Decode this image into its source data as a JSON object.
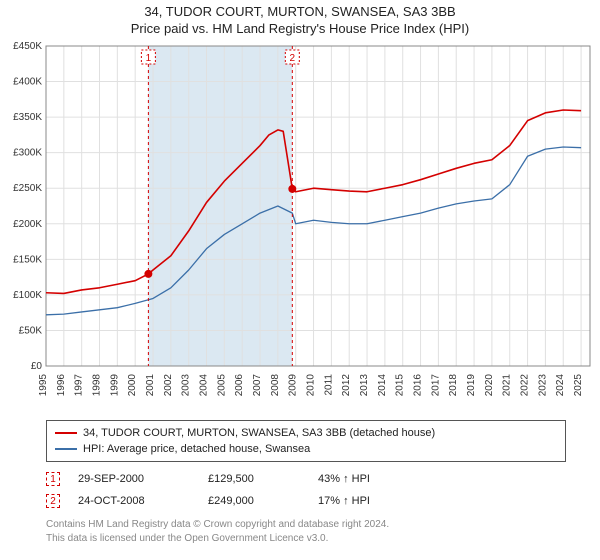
{
  "title_line1": "34, TUDOR COURT, MURTON, SWANSEA, SA3 3BB",
  "title_line2": "Price paid vs. HM Land Registry's House Price Index (HPI)",
  "chart": {
    "background_color": "#ffffff",
    "grid_color": "#e0e0e0",
    "axis_color": "#333333",
    "shade_band_color": "#dbe8f2",
    "shade_start_year": 2000.74,
    "shade_end_year": 2008.81,
    "year_min": 1995,
    "year_max": 2025.5,
    "y_min": 0,
    "y_max": 450000,
    "y_tick_step": 50000,
    "y_tick_labels": [
      "£0",
      "£50K",
      "£100K",
      "£150K",
      "£200K",
      "£250K",
      "£300K",
      "£350K",
      "£400K",
      "£450K"
    ],
    "x_ticks": [
      1995,
      1996,
      1997,
      1998,
      1999,
      2000,
      2001,
      2002,
      2003,
      2004,
      2005,
      2006,
      2007,
      2008,
      2009,
      2010,
      2011,
      2012,
      2013,
      2014,
      2015,
      2016,
      2017,
      2018,
      2019,
      2020,
      2021,
      2022,
      2023,
      2024,
      2025
    ],
    "series": [
      {
        "name": "property",
        "label": "34, TUDOR COURT, MURTON, SWANSEA, SA3 3BB (detached house)",
        "color": "#d40000",
        "line_width": 1.6,
        "data": [
          [
            1995,
            103000
          ],
          [
            1996,
            102000
          ],
          [
            1997,
            107000
          ],
          [
            1998,
            110000
          ],
          [
            1999,
            115000
          ],
          [
            2000,
            120000
          ],
          [
            2000.74,
            129500
          ],
          [
            2001,
            135000
          ],
          [
            2002,
            155000
          ],
          [
            2003,
            190000
          ],
          [
            2004,
            230000
          ],
          [
            2005,
            260000
          ],
          [
            2006,
            285000
          ],
          [
            2007,
            310000
          ],
          [
            2007.5,
            325000
          ],
          [
            2008,
            332000
          ],
          [
            2008.3,
            330000
          ],
          [
            2008.81,
            249000
          ],
          [
            2009,
            245000
          ],
          [
            2010,
            250000
          ],
          [
            2011,
            248000
          ],
          [
            2012,
            246000
          ],
          [
            2013,
            245000
          ],
          [
            2014,
            250000
          ],
          [
            2015,
            255000
          ],
          [
            2016,
            262000
          ],
          [
            2017,
            270000
          ],
          [
            2018,
            278000
          ],
          [
            2019,
            285000
          ],
          [
            2020,
            290000
          ],
          [
            2021,
            310000
          ],
          [
            2022,
            345000
          ],
          [
            2023,
            356000
          ],
          [
            2024,
            360000
          ],
          [
            2025,
            359000
          ]
        ]
      },
      {
        "name": "hpi",
        "label": "HPI: Average price, detached house, Swansea",
        "color": "#3b6fa8",
        "line_width": 1.3,
        "data": [
          [
            1995,
            72000
          ],
          [
            1996,
            73000
          ],
          [
            1997,
            76000
          ],
          [
            1998,
            79000
          ],
          [
            1999,
            82000
          ],
          [
            2000,
            88000
          ],
          [
            2001,
            95000
          ],
          [
            2002,
            110000
          ],
          [
            2003,
            135000
          ],
          [
            2004,
            165000
          ],
          [
            2005,
            185000
          ],
          [
            2006,
            200000
          ],
          [
            2007,
            215000
          ],
          [
            2008,
            225000
          ],
          [
            2008.81,
            215000
          ],
          [
            2009,
            200000
          ],
          [
            2010,
            205000
          ],
          [
            2011,
            202000
          ],
          [
            2012,
            200000
          ],
          [
            2013,
            200000
          ],
          [
            2014,
            205000
          ],
          [
            2015,
            210000
          ],
          [
            2016,
            215000
          ],
          [
            2017,
            222000
          ],
          [
            2018,
            228000
          ],
          [
            2019,
            232000
          ],
          [
            2020,
            235000
          ],
          [
            2021,
            255000
          ],
          [
            2022,
            295000
          ],
          [
            2023,
            305000
          ],
          [
            2024,
            308000
          ],
          [
            2025,
            307000
          ]
        ]
      }
    ],
    "sale_markers": [
      {
        "n": "1",
        "year": 2000.74,
        "price": 129500,
        "color": "#d40000"
      },
      {
        "n": "2",
        "year": 2008.81,
        "price": 249000,
        "color": "#d40000"
      }
    ]
  },
  "legend": {
    "items": [
      {
        "color": "#d40000",
        "label": "34, TUDOR COURT, MURTON, SWANSEA, SA3 3BB (detached house)"
      },
      {
        "color": "#3b6fa8",
        "label": "HPI: Average price, detached house, Swansea"
      }
    ]
  },
  "sales": [
    {
      "n": "1",
      "date": "29-SEP-2000",
      "price": "£129,500",
      "diff": "43% ↑ HPI",
      "color": "#d40000"
    },
    {
      "n": "2",
      "date": "24-OCT-2008",
      "price": "£249,000",
      "diff": "17% ↑ HPI",
      "color": "#d40000"
    }
  ],
  "footnote_line1": "Contains HM Land Registry data © Crown copyright and database right 2024.",
  "footnote_line2": "This data is licensed under the Open Government Licence v3.0."
}
